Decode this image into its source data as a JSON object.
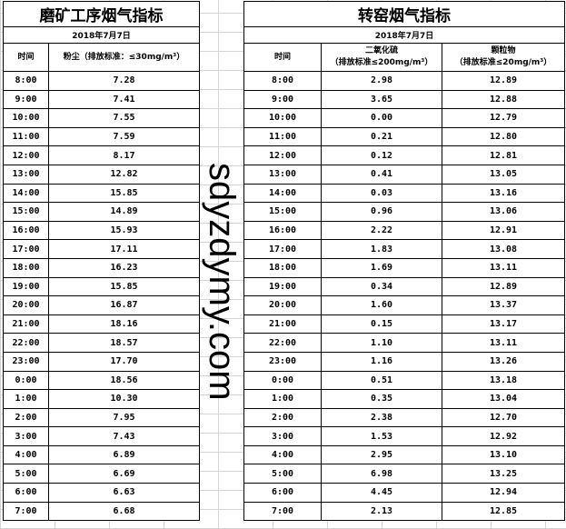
{
  "left": {
    "title": "磨矿工序烟气指标",
    "date": "2018年7月7日",
    "headers": [
      "时间",
      "粉尘（排放标准：≤30mg/m³）"
    ],
    "rows": [
      [
        "8:00",
        "7.28"
      ],
      [
        "9:00",
        "7.41"
      ],
      [
        "10:00",
        "7.55"
      ],
      [
        "11:00",
        "7.59"
      ],
      [
        "12:00",
        "8.17"
      ],
      [
        "13:00",
        "12.82"
      ],
      [
        "14:00",
        "15.85"
      ],
      [
        "15:00",
        "14.89"
      ],
      [
        "16:00",
        "15.93"
      ],
      [
        "17:00",
        "17.11"
      ],
      [
        "18:00",
        "16.23"
      ],
      [
        "19:00",
        "15.85"
      ],
      [
        "20:00",
        "16.87"
      ],
      [
        "21:00",
        "18.16"
      ],
      [
        "22:00",
        "18.57"
      ],
      [
        "23:00",
        "17.70"
      ],
      [
        "0:00",
        "18.56"
      ],
      [
        "1:00",
        "10.30"
      ],
      [
        "2:00",
        "7.95"
      ],
      [
        "3:00",
        "7.43"
      ],
      [
        "4:00",
        "6.89"
      ],
      [
        "5:00",
        "6.69"
      ],
      [
        "6:00",
        "6.63"
      ],
      [
        "7:00",
        "6.68"
      ]
    ]
  },
  "right": {
    "title": "转窑烟气指标",
    "date": "2018年7月7日",
    "headers": [
      "时间",
      "二氧化硫\n（排放标准≤200mg/m³）",
      "颗粒物\n（排放标准≤20mg/m³）"
    ],
    "rows": [
      [
        "8:00",
        "2.98",
        "12.89"
      ],
      [
        "9:00",
        "3.65",
        "12.88"
      ],
      [
        "10:00",
        "0.00",
        "12.79"
      ],
      [
        "11:00",
        "0.21",
        "12.80"
      ],
      [
        "12:00",
        "0.12",
        "12.81"
      ],
      [
        "13:00",
        "0.41",
        "13.05"
      ],
      [
        "14:00",
        "0.03",
        "13.16"
      ],
      [
        "15:00",
        "0.96",
        "13.06"
      ],
      [
        "16:00",
        "2.22",
        "12.91"
      ],
      [
        "17:00",
        "1.83",
        "13.08"
      ],
      [
        "18:00",
        "1.69",
        "13.11"
      ],
      [
        "19:00",
        "0.34",
        "12.89"
      ],
      [
        "20:00",
        "1.60",
        "13.37"
      ],
      [
        "21:00",
        "0.15",
        "13.17"
      ],
      [
        "22:00",
        "1.10",
        "13.11"
      ],
      [
        "23:00",
        "1.16",
        "13.26"
      ],
      [
        "0:00",
        "0.51",
        "13.18"
      ],
      [
        "1:00",
        "0.35",
        "13.04"
      ],
      [
        "2:00",
        "2.38",
        "12.70"
      ],
      [
        "3:00",
        "1.53",
        "12.92"
      ],
      [
        "4:00",
        "2.95",
        "13.10"
      ],
      [
        "5:00",
        "6.98",
        "13.25"
      ],
      [
        "6:00",
        "4.45",
        "12.94"
      ],
      [
        "7:00",
        "2.13",
        "12.85"
      ]
    ]
  },
  "watermark": "sdyzdymy.com"
}
